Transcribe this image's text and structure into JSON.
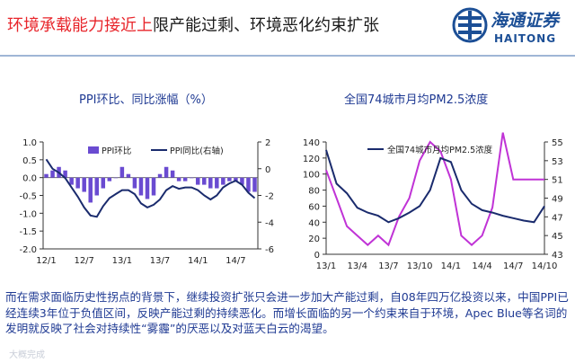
{
  "header": {
    "title_highlight": "环境承载能力接近上",
    "title_rest": "限产能过剩、环境恶化约束扩张",
    "logo_cn": "海通证券",
    "logo_en": "HAITONG"
  },
  "colors": {
    "primary": "#1f3a93",
    "highlight": "#e8252b",
    "bar": "#6a4bd1",
    "line_dark": "#1a2b6d",
    "pm_line": "#c033d6"
  },
  "paragraph": "而在需求面临历史性拐点的背景下，继续投资扩张只会进一步加大产能过剩，自08年四万亿投资以来，中国PPI已经连续3年位于负值区间，反映产能过剩的持续恶化。而增长面临的另一个约束来自于环境，Apec Blue等名词的发明就反映了社会对持续性“雾霾”的厌恶以及对蓝天白云的渴望。",
  "watermark": "大概完成",
  "chart_data": [
    {
      "type": "bar",
      "title": "PPI环比、同比涨幅（%）",
      "categories": [
        "12/1",
        "12/2",
        "12/3",
        "12/4",
        "12/5",
        "12/6",
        "12/7",
        "12/8",
        "12/9",
        "12/10",
        "12/11",
        "12/12",
        "13/1",
        "13/2",
        "13/3",
        "13/4",
        "13/5",
        "13/6",
        "13/7",
        "13/8",
        "13/9",
        "13/10",
        "13/11",
        "13/12",
        "14/1",
        "14/2",
        "14/3",
        "14/4",
        "14/5",
        "14/6",
        "14/7",
        "14/8",
        "14/9",
        "14/10"
      ],
      "x_tick_labels": [
        "12/1",
        "12/7",
        "13/1",
        "13/7",
        "14/1",
        "14/7"
      ],
      "series": [
        {
          "name": "PPI环比",
          "type": "bar",
          "axis": "left",
          "values": [
            0.1,
            0.2,
            0.3,
            0.2,
            -0.2,
            -0.3,
            -0.4,
            -0.7,
            -0.5,
            -0.3,
            -0.1,
            0.0,
            0.3,
            0.1,
            -0.3,
            -0.5,
            -0.6,
            -0.5,
            0.1,
            0.3,
            0.2,
            -0.1,
            -0.1,
            0.0,
            -0.2,
            -0.2,
            -0.3,
            -0.3,
            -0.2,
            -0.1,
            -0.1,
            -0.2,
            -0.4,
            -0.4
          ]
        },
        {
          "name": "PPI同比(右轴)",
          "type": "line",
          "axis": "right",
          "values": [
            0.7,
            0.0,
            -0.3,
            -0.7,
            -1.4,
            -2.1,
            -2.9,
            -3.5,
            -3.6,
            -2.8,
            -2.2,
            -1.9,
            -1.6,
            -1.6,
            -1.9,
            -2.6,
            -2.9,
            -2.7,
            -2.3,
            -1.6,
            -1.3,
            -1.5,
            -1.4,
            -1.4,
            -1.6,
            -2.0,
            -2.3,
            -2.0,
            -1.4,
            -1.1,
            -0.9,
            -1.2,
            -1.8,
            -2.2
          ]
        }
      ],
      "ylim_left": [
        -2.0,
        1.0
      ],
      "yticks_left": [
        "1.0",
        "0.5",
        "0.0",
        "-0.5",
        "-1.0",
        "-1.5",
        "-2.0"
      ],
      "ylim_right": [
        -6,
        2
      ],
      "yticks_right": [
        "2",
        "0",
        "-2",
        "-4",
        "-6"
      ],
      "legend": "top"
    },
    {
      "type": "line",
      "title": "全国74城市月均PM2.5浓度",
      "x": [
        "13/1",
        "13/2",
        "13/3",
        "13/4",
        "13/5",
        "13/6",
        "13/7",
        "13/8",
        "13/9",
        "13/10",
        "13/11",
        "13/12",
        "14/1",
        "14/2",
        "14/3",
        "14/4",
        "14/5",
        "14/6",
        "14/7",
        "14/8",
        "14/9",
        "14/10"
      ],
      "x_tick_labels": [
        "13/1",
        "13/4",
        "13/7",
        "13/10",
        "14/1",
        "14/4",
        "14/7",
        "14/10"
      ],
      "series": [
        {
          "name": "全国74城市月均PM2.5浓度",
          "axis": "left",
          "color": "#1a2b6d",
          "values": [
            130,
            88,
            76,
            58,
            52,
            48,
            40,
            45,
            52,
            60,
            80,
            120,
            115,
            80,
            63,
            55,
            52,
            48,
            45,
            42,
            40,
            60
          ]
        },
        {
          "axis": "right",
          "color": "#c033d6",
          "values": [
            52,
            49,
            46,
            45,
            44,
            45,
            44,
            47,
            49,
            53,
            55,
            54,
            51,
            45,
            44,
            45,
            48,
            56,
            51,
            51,
            51,
            51
          ]
        }
      ],
      "ylim_left": [
        0,
        140
      ],
      "yticks_left": [
        "140",
        "120",
        "100",
        "80",
        "60",
        "40",
        "20",
        "0"
      ],
      "ylim_right": [
        43,
        55
      ],
      "yticks_right": [
        "55",
        "53",
        "51",
        "49",
        "47",
        "45",
        "43"
      ],
      "legend": "top"
    }
  ]
}
